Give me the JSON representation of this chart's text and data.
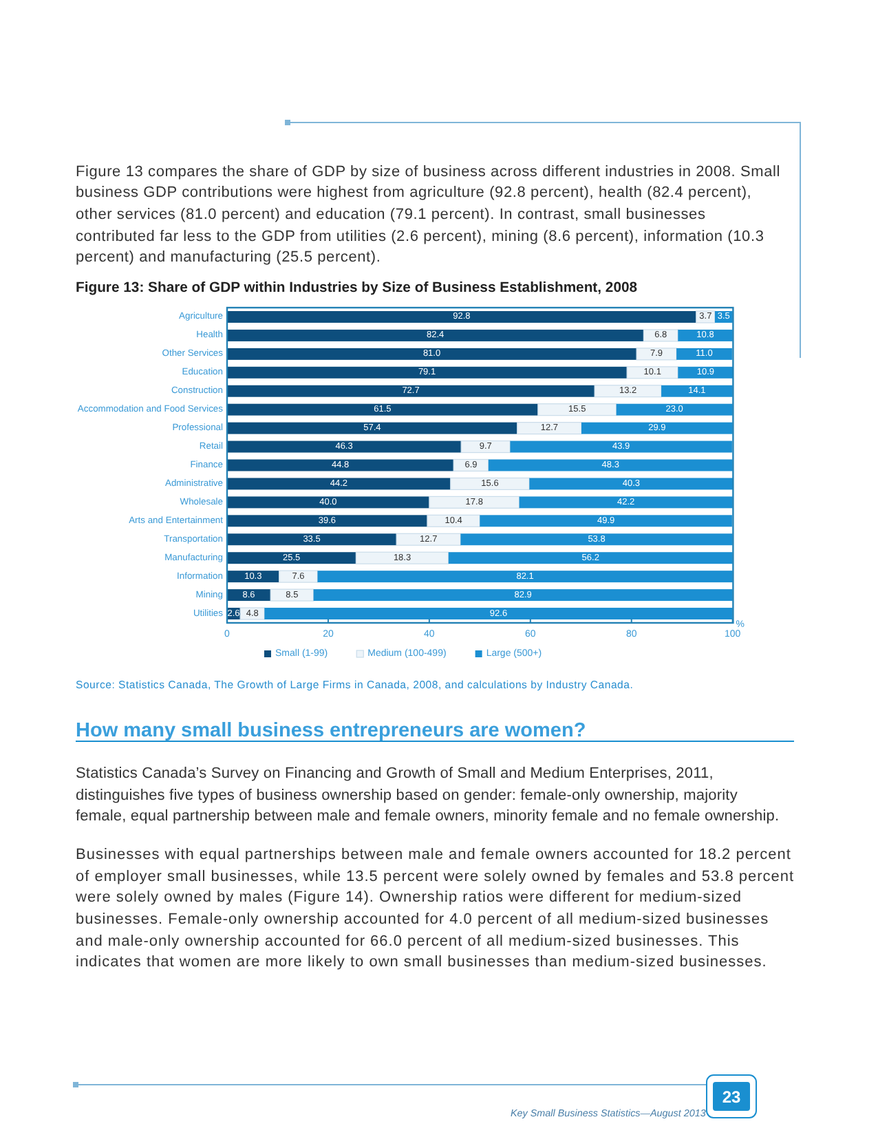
{
  "chart_data": {
    "type": "bar",
    "orientation": "horizontal",
    "stacked": true,
    "title": "Figure 13: Share of GDP within Industries by Size of Business Establishment, 2008",
    "xlabel": "%",
    "categories": [
      "Agriculture",
      "Health",
      "Other Services",
      "Education",
      "Construction",
      "Accommodation and Food Services",
      "Professional",
      "Retail",
      "Finance",
      "Administrative",
      "Wholesale",
      "Arts and Entertainment",
      "Transportation",
      "Manufacturing",
      "Information",
      "Mining",
      "Utilities"
    ],
    "series": [
      {
        "name": "Small (1-99)",
        "color": "#0d4e7d",
        "values": [
          92.8,
          82.4,
          81.0,
          79.1,
          72.7,
          61.5,
          57.4,
          46.3,
          44.8,
          44.2,
          40.0,
          39.6,
          33.5,
          25.5,
          10.3,
          8.6,
          2.6
        ],
        "value_labels": [
          "92.8",
          "82.4",
          "81.0",
          "79.1",
          "72.7",
          "61.5",
          "57.4",
          "46.3",
          "44.8",
          "44.2",
          "40.0",
          "39.6",
          "33.5",
          "25.5",
          "10.3",
          "8.6",
          "2.6"
        ]
      },
      {
        "name": "Medium (100-499)",
        "color": "#edf4f9",
        "values": [
          3.7,
          6.8,
          7.9,
          10.1,
          13.2,
          15.5,
          12.7,
          9.7,
          6.9,
          15.6,
          17.8,
          10.4,
          12.7,
          18.3,
          7.6,
          8.5,
          4.8
        ],
        "value_labels": [
          "3.7",
          "6.8",
          "7.9",
          "10.1",
          "13.2",
          "15.5",
          "12.7",
          "9.7",
          "6.9",
          "15.6",
          "17.8",
          "10.4",
          "12.7",
          "18.3",
          "7.6",
          "8.5",
          "4.8"
        ]
      },
      {
        "name": "Large (500+)",
        "color": "#1b8fd2",
        "values": [
          3.5,
          10.8,
          11.0,
          10.9,
          14.1,
          23.0,
          29.9,
          43.9,
          48.3,
          40.3,
          42.2,
          49.9,
          53.8,
          56.2,
          82.1,
          82.9,
          92.6
        ],
        "value_labels": [
          "3.5",
          "10.8",
          "11.0",
          "10.9",
          "14.1",
          "23.0",
          "29.9",
          "43.9",
          "48.3",
          "40.3",
          "42.2",
          "49.9",
          "53.8",
          "56.2",
          "82.1",
          "82.9",
          "92.6"
        ]
      }
    ],
    "xlim": [
      0,
      100.1
    ],
    "xticks": [
      0,
      20,
      40,
      60,
      80,
      100
    ],
    "legend": "bottom",
    "annotations": [
      "Figure 13 compares the share of GDP by size of business across different industries in 2008. Small business GDP contributions were highest from agriculture (92.8 percent), health (82.4 percent), other services (81.0 percent) and education (79.1 percent). In contrast, small businesses contributed far less to the GDP from utilities (2.6 percent), mining (8.6 percent), information (10.3 percent) and manufacturing (25.5 percent).",
      "Source: Statistics Canada, The Growth of Large Firms in Canada, 2008, and calculations by Industry Canada.",
      "How many small business entrepreneurs are women?",
      "Statistics Canada’s Survey on Financing and Growth of Small and Medium Enterprises, 2011, distinguishes five types of business ownership based on gender: female-only ownership, majority female, equal partnership between male and female owners, minority female and no female ownership.",
      "Businesses with equal partnerships between male and female owners accounted for 18.2 percent of employer small businesses, while 13.5 percent were solely owned by females and 53.8 percent were solely owned by males (Figure 14). Ownership ratios were different for medium-sized businesses. Female-only ownership accounted for 4.0 percent of all medium-sized businesses and male-only ownership accounted for 66.0 percent of all medium-sized businesses. This indicates that women are more likely to own small businesses than medium-sized businesses.",
      "Key Small Business Statistics—August 2013",
      "23"
    ]
  }
}
